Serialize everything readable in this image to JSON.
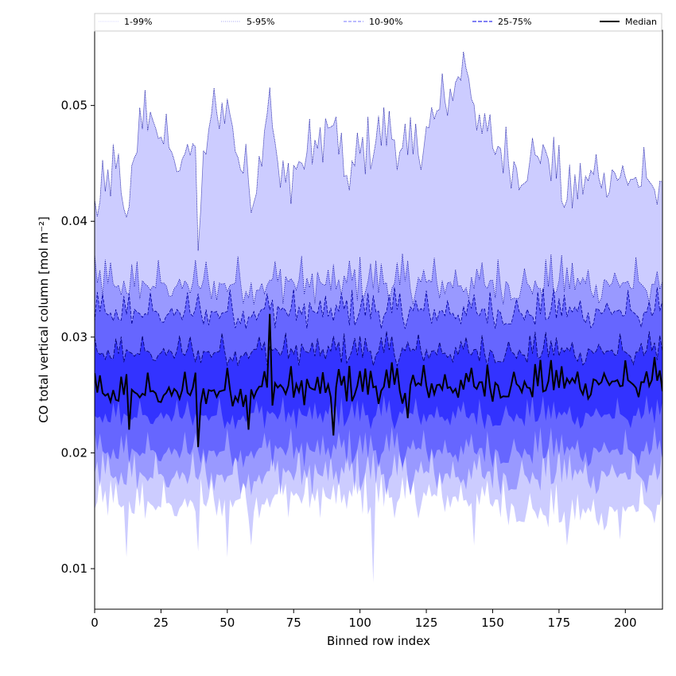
{
  "chart_data": {
    "type": "area",
    "xlabel": "Binned row index",
    "ylabel": "CO total vertical column [mol m⁻²]",
    "xlim": [
      0,
      214
    ],
    "ylim": [
      0.0065,
      0.0565
    ],
    "x_ticks": [
      0,
      25,
      50,
      75,
      100,
      125,
      150,
      175,
      200
    ],
    "y_ticks": [
      0.01,
      0.02,
      0.03,
      0.04,
      0.05
    ],
    "y_tick_labels": [
      "0.01",
      "0.02",
      "0.03",
      "0.04",
      "0.05"
    ],
    "grid": false,
    "legend_position": "top",
    "legend": [
      {
        "label": "1-99%",
        "color": "#ccccff",
        "dash": "1,1",
        "width": 0.8
      },
      {
        "label": "5-95%",
        "color": "#8888ee",
        "dash": "1,1.5",
        "width": 0.8
      },
      {
        "label": "10-90%",
        "color": "#7777ff",
        "dash": "4,2",
        "width": 1
      },
      {
        "label": "25-75%",
        "color": "#3333ee",
        "dash": "5,2",
        "width": 1.2
      },
      {
        "label": "Median",
        "color": "#000000",
        "dash": "",
        "width": 2
      }
    ],
    "x_count": 215,
    "bands": [
      {
        "name": "1-99%",
        "fill": "#ccccff",
        "edge": "#000099",
        "dash": "1,1",
        "upper_knots": [
          [
            0,
            0.041
          ],
          [
            8,
            0.045
          ],
          [
            12,
            0.041
          ],
          [
            15,
            0.047
          ],
          [
            20,
            0.05
          ],
          [
            30,
            0.046
          ],
          [
            38,
            0.047
          ],
          [
            39,
            0.039
          ],
          [
            43,
            0.049
          ],
          [
            50,
            0.051
          ],
          [
            55,
            0.045
          ],
          [
            60,
            0.043
          ],
          [
            66,
            0.052
          ],
          [
            70,
            0.043
          ],
          [
            80,
            0.046
          ],
          [
            90,
            0.049
          ],
          [
            95,
            0.044
          ],
          [
            100,
            0.046
          ],
          [
            110,
            0.048
          ],
          [
            120,
            0.046
          ],
          [
            130,
            0.05
          ],
          [
            140,
            0.054
          ],
          [
            145,
            0.049
          ],
          [
            150,
            0.047
          ],
          [
            160,
            0.045
          ],
          [
            170,
            0.047
          ],
          [
            178,
            0.042
          ],
          [
            190,
            0.045
          ],
          [
            200,
            0.044
          ],
          [
            214,
            0.044
          ]
        ],
        "upper_amp": 0.0028,
        "lower_knots": [
          [
            0,
            0.016
          ],
          [
            30,
            0.016
          ],
          [
            60,
            0.0165
          ],
          [
            100,
            0.0165
          ],
          [
            140,
            0.0165
          ],
          [
            180,
            0.015
          ],
          [
            214,
            0.016
          ]
        ],
        "lower_amp": 0.0022,
        "spikes": [
          [
            12,
            0.011
          ],
          [
            39,
            0.0115
          ],
          [
            50,
            0.011
          ],
          [
            59,
            0.012
          ],
          [
            105,
            0.0088
          ],
          [
            143,
            0.012
          ],
          [
            178,
            0.012
          ],
          [
            198,
            0.0125
          ]
        ]
      },
      {
        "name": "5-95%",
        "fill": "#9999ff",
        "edge": "#000099",
        "dash": "1,1.5",
        "upper_knots": [
          [
            0,
            0.035
          ],
          [
            214,
            0.035
          ]
        ],
        "upper_amp": 0.0022,
        "lower_knots": [
          [
            0,
            0.0185
          ],
          [
            214,
            0.0185
          ]
        ],
        "lower_amp": 0.0022,
        "spikes": []
      },
      {
        "name": "10-90%",
        "fill": "#6666ff",
        "edge": "#000099",
        "dash": "4,2",
        "upper_knots": [
          [
            0,
            0.0325
          ],
          [
            214,
            0.0325
          ]
        ],
        "upper_amp": 0.0018,
        "lower_knots": [
          [
            0,
            0.0205
          ],
          [
            214,
            0.0205
          ]
        ],
        "lower_amp": 0.0018,
        "spikes": []
      },
      {
        "name": "25-75%",
        "fill": "#3333ff",
        "edge": "#000066",
        "dash": "5,2",
        "upper_knots": [
          [
            0,
            0.029
          ],
          [
            214,
            0.029
          ]
        ],
        "upper_amp": 0.0015,
        "lower_knots": [
          [
            0,
            0.0235
          ],
          [
            214,
            0.0235
          ]
        ],
        "lower_amp": 0.0015,
        "spikes": []
      }
    ],
    "median": {
      "name": "Median",
      "color": "#000000",
      "knots": [
        [
          0,
          0.0255
        ],
        [
          214,
          0.0265
        ]
      ],
      "amp": 0.0018,
      "spikes": [
        [
          13,
          0.022
        ],
        [
          39,
          0.0205
        ],
        [
          58,
          0.022
        ],
        [
          66,
          0.032
        ],
        [
          90,
          0.0215
        ],
        [
          118,
          0.023
        ]
      ]
    }
  }
}
